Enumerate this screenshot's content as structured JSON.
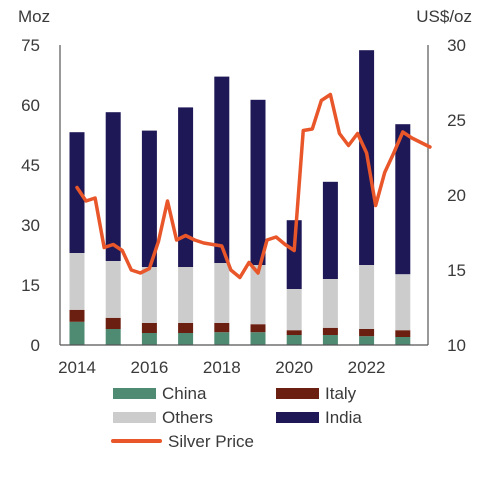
{
  "chart_data": {
    "type": "bar",
    "subtype": "stacked bar with line overlay (dual axis)",
    "left_axis_unit": "Moz",
    "right_axis_unit": "US$/oz",
    "left_ylim": [
      0,
      75
    ],
    "left_ticks": [
      "0",
      "15",
      "30",
      "45",
      "60",
      "75"
    ],
    "right_ylim": [
      10,
      30
    ],
    "right_ticks": [
      "10",
      "15",
      "20",
      "25",
      "30"
    ],
    "x_tick_labels": [
      "2014",
      "2016",
      "2018",
      "2020",
      "2022"
    ],
    "categories": [
      "2014",
      "2015",
      "2016",
      "2017",
      "2018",
      "2019",
      "2020",
      "2021",
      "2022",
      "2023"
    ],
    "series": [
      {
        "name": "China",
        "color": "#4f8a73",
        "values": [
          5.8,
          4.0,
          3.0,
          3.0,
          3.2,
          3.2,
          2.5,
          2.5,
          2.2,
          2.0
        ]
      },
      {
        "name": "Italy",
        "color": "#6b1f10",
        "values": [
          3.0,
          2.8,
          2.5,
          2.5,
          2.3,
          2.0,
          1.2,
          1.8,
          1.8,
          1.7
        ]
      },
      {
        "name": "Others",
        "color": "#cccccc",
        "values": [
          14.2,
          14.2,
          14.0,
          14.0,
          15.0,
          14.8,
          10.3,
          12.2,
          16.0,
          14.0
        ]
      },
      {
        "name": "India",
        "color": "#1e1856",
        "values": [
          30.2,
          37.2,
          34.1,
          39.9,
          46.6,
          41.3,
          17.2,
          24.3,
          53.7,
          37.5
        ]
      }
    ],
    "line_series": {
      "name": "Silver Price",
      "color": "#e8562a",
      "x": [
        2014.0,
        2014.25,
        2014.5,
        2014.75,
        2015.0,
        2015.25,
        2015.5,
        2015.75,
        2016.0,
        2016.25,
        2016.5,
        2016.75,
        2017.0,
        2017.25,
        2017.5,
        2017.75,
        2018.0,
        2018.25,
        2018.5,
        2018.75,
        2019.0,
        2019.25,
        2019.5,
        2019.75,
        2020.0,
        2020.25,
        2020.5,
        2020.75,
        2021.0,
        2021.25,
        2021.5,
        2021.75,
        2022.0,
        2022.25,
        2022.5,
        2022.75,
        2023.0,
        2023.25,
        2023.5,
        2023.75
      ],
      "y": [
        20.5,
        19.6,
        19.8,
        16.5,
        16.7,
        16.3,
        15.0,
        14.8,
        15.1,
        16.9,
        19.6,
        17.0,
        17.3,
        17.0,
        16.8,
        16.7,
        16.6,
        15.0,
        14.5,
        15.5,
        14.8,
        17.0,
        17.2,
        16.7,
        16.3,
        24.3,
        24.4,
        26.3,
        26.7,
        24.1,
        23.3,
        24.1,
        22.8,
        19.3,
        21.5,
        22.8,
        24.2,
        23.8,
        23.5,
        23.2
      ]
    },
    "legend": {
      "placement": "bottom",
      "items": [
        {
          "label": "China",
          "color": "#4f8a73",
          "kind": "swatch"
        },
        {
          "label": "Italy",
          "color": "#6b1f10",
          "kind": "swatch"
        },
        {
          "label": "Others",
          "color": "#cccccc",
          "kind": "swatch"
        },
        {
          "label": "India",
          "color": "#1e1856",
          "kind": "swatch"
        },
        {
          "label": "Silver Price",
          "color": "#e8562a",
          "kind": "line"
        }
      ]
    },
    "grid": false
  }
}
